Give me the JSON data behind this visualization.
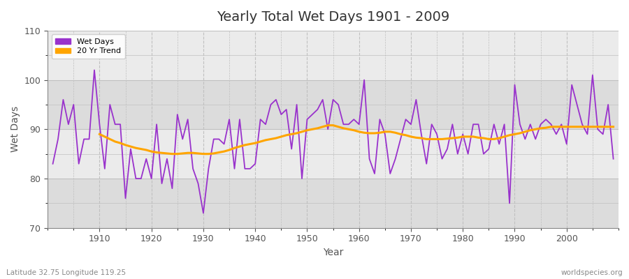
{
  "title": "Yearly Total Wet Days 1901 - 2009",
  "xlabel": "Year",
  "ylabel": "Wet Days",
  "subtitle": "Latitude 32.75 Longitude 119.25",
  "watermark": "worldspecies.org",
  "ylim": [
    70,
    110
  ],
  "yticks": [
    70,
    80,
    90,
    100,
    110
  ],
  "wet_days_color": "#9932CC",
  "trend_color": "#FFA500",
  "plot_bg_color": "#EBEBEB",
  "band_color": "#DCDCDC",
  "legend_label_wet": "Wet Days",
  "legend_label_trend": "20 Yr Trend",
  "years": [
    1901,
    1902,
    1903,
    1904,
    1905,
    1906,
    1907,
    1908,
    1909,
    1910,
    1911,
    1912,
    1913,
    1914,
    1915,
    1916,
    1917,
    1918,
    1919,
    1920,
    1921,
    1922,
    1923,
    1924,
    1925,
    1926,
    1927,
    1928,
    1929,
    1930,
    1931,
    1932,
    1933,
    1934,
    1935,
    1936,
    1937,
    1938,
    1939,
    1940,
    1941,
    1942,
    1943,
    1944,
    1945,
    1946,
    1947,
    1948,
    1949,
    1950,
    1951,
    1952,
    1953,
    1954,
    1955,
    1956,
    1957,
    1958,
    1959,
    1960,
    1961,
    1962,
    1963,
    1964,
    1965,
    1966,
    1967,
    1968,
    1969,
    1970,
    1971,
    1972,
    1973,
    1974,
    1975,
    1976,
    1977,
    1978,
    1979,
    1980,
    1981,
    1982,
    1983,
    1984,
    1985,
    1986,
    1987,
    1988,
    1989,
    1990,
    1991,
    1992,
    1993,
    1994,
    1995,
    1996,
    1997,
    1998,
    1999,
    2000,
    2001,
    2002,
    2003,
    2004,
    2005,
    2006,
    2007,
    2008,
    2009
  ],
  "wet_days": [
    83,
    88,
    96,
    91,
    95,
    83,
    88,
    88,
    102,
    91,
    82,
    95,
    91,
    91,
    76,
    86,
    80,
    80,
    84,
    80,
    91,
    79,
    84,
    78,
    93,
    88,
    92,
    82,
    79,
    73,
    82,
    88,
    88,
    87,
    92,
    82,
    92,
    82,
    82,
    83,
    92,
    91,
    95,
    96,
    93,
    94,
    86,
    95,
    80,
    92,
    93,
    94,
    96,
    90,
    96,
    95,
    91,
    91,
    92,
    91,
    100,
    84,
    81,
    92,
    89,
    81,
    84,
    88,
    92,
    91,
    96,
    89,
    83,
    91,
    89,
    84,
    86,
    91,
    85,
    89,
    85,
    91,
    91,
    85,
    86,
    91,
    87,
    91,
    75,
    99,
    91,
    88,
    91,
    88,
    91,
    92,
    91,
    89,
    91,
    87,
    99,
    95,
    91,
    89,
    101,
    90,
    89,
    95,
    84
  ],
  "trend_years": [
    1910,
    1911,
    1912,
    1913,
    1914,
    1915,
    1916,
    1917,
    1918,
    1919,
    1920,
    1921,
    1922,
    1923,
    1924,
    1925,
    1926,
    1927,
    1928,
    1929,
    1930,
    1931,
    1932,
    1933,
    1934,
    1935,
    1936,
    1937,
    1938,
    1939,
    1940,
    1941,
    1942,
    1943,
    1944,
    1945,
    1946,
    1947,
    1948,
    1949,
    1950,
    1951,
    1952,
    1953,
    1954,
    1955,
    1956,
    1957,
    1958,
    1959,
    1960,
    1961,
    1962,
    1963,
    1964,
    1965,
    1966,
    1967,
    1968,
    1969,
    1970,
    1971,
    1972,
    1973,
    1974,
    1975,
    1976,
    1977,
    1978,
    1979,
    1980,
    1981,
    1982,
    1983,
    1984,
    1985,
    1986,
    1987,
    1988,
    1989,
    1990,
    1991,
    1992,
    1993,
    1994,
    1995,
    1996,
    1997,
    1998,
    1999,
    2000,
    2001,
    2002,
    2003,
    2004,
    2005,
    2006,
    2007,
    2008,
    2009
  ],
  "trend_values": [
    89.0,
    88.5,
    88.0,
    87.5,
    87.2,
    86.8,
    86.5,
    86.2,
    86.0,
    85.8,
    85.5,
    85.3,
    85.2,
    85.1,
    85.0,
    85.0,
    85.1,
    85.2,
    85.2,
    85.1,
    85.0,
    85.0,
    85.1,
    85.3,
    85.5,
    85.8,
    86.2,
    86.5,
    86.8,
    87.0,
    87.2,
    87.5,
    87.8,
    88.0,
    88.2,
    88.5,
    88.8,
    89.0,
    89.2,
    89.5,
    89.8,
    90.0,
    90.2,
    90.5,
    90.8,
    90.8,
    90.5,
    90.2,
    90.0,
    89.8,
    89.5,
    89.3,
    89.2,
    89.2,
    89.3,
    89.5,
    89.5,
    89.3,
    89.0,
    88.8,
    88.5,
    88.3,
    88.2,
    88.0,
    88.0,
    88.0,
    88.0,
    88.1,
    88.2,
    88.3,
    88.5,
    88.5,
    88.5,
    88.3,
    88.2,
    88.0,
    88.0,
    88.2,
    88.5,
    88.8,
    89.0,
    89.2,
    89.5,
    89.8,
    90.0,
    90.2,
    90.3,
    90.5,
    90.5,
    90.5,
    90.5,
    90.5,
    90.5,
    90.5,
    90.5,
    90.5,
    90.5,
    90.5,
    90.5,
    90.5
  ]
}
